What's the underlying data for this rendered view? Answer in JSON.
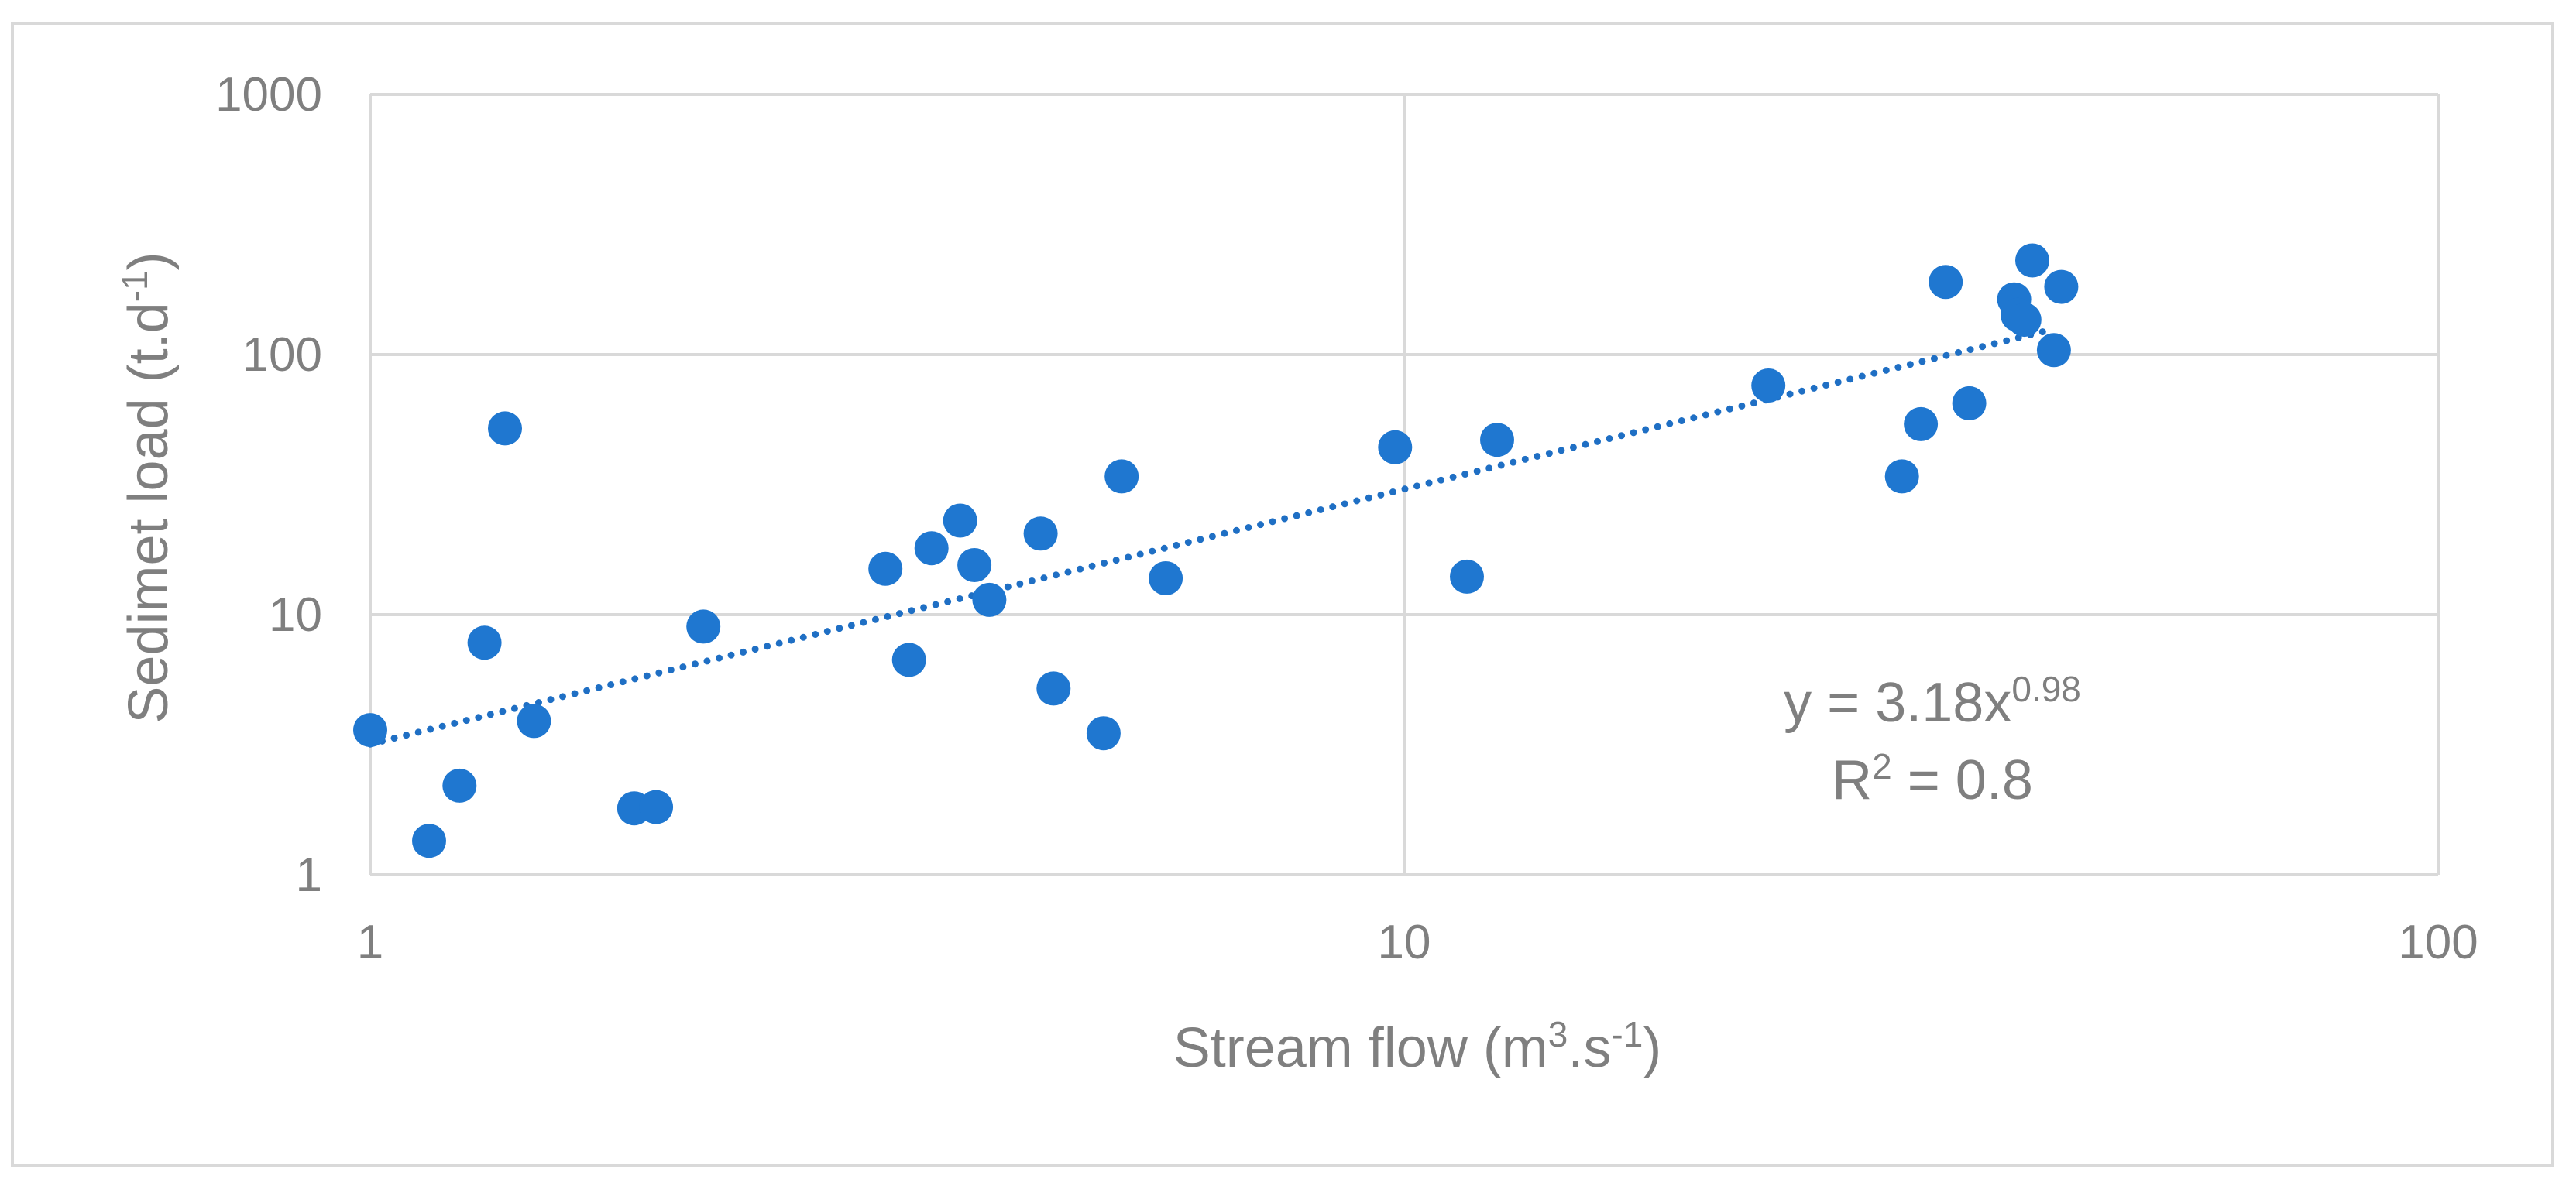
{
  "chart_data": {
    "type": "scatter",
    "xlabel": {
      "pre": "Stream flow (m",
      "sup1": "3",
      "mid": ".s",
      "sup2": "-1",
      "post": ")"
    },
    "ylabel": {
      "pre": "Sedimet load (t.d",
      "sup1": "-1",
      "post": ")"
    },
    "x_scale": "log",
    "y_scale": "log",
    "xlim": [
      1,
      100
    ],
    "ylim": [
      1,
      1000
    ],
    "x_ticks": [
      1,
      10,
      100
    ],
    "x_tick_labels": [
      "1",
      "10",
      "100"
    ],
    "y_ticks": [
      1,
      10,
      100,
      1000
    ],
    "y_tick_labels": [
      "1",
      "10",
      "100",
      "1000"
    ],
    "grid": true,
    "legend": "none",
    "colors": {
      "marker": "#1f77d0",
      "trendline": "#1f6fc4",
      "grid": "#d9d9d9",
      "text": "#7f7f7f"
    },
    "series": [
      {
        "points": [
          {
            "x": 1.0,
            "y": 3.6
          },
          {
            "x": 1.14,
            "y": 1.35
          },
          {
            "x": 1.22,
            "y": 2.2
          },
          {
            "x": 1.29,
            "y": 7.8
          },
          {
            "x": 1.35,
            "y": 52
          },
          {
            "x": 1.44,
            "y": 3.9
          },
          {
            "x": 1.8,
            "y": 1.8
          },
          {
            "x": 1.89,
            "y": 1.82
          },
          {
            "x": 2.1,
            "y": 9.0
          },
          {
            "x": 3.15,
            "y": 15
          },
          {
            "x": 3.32,
            "y": 6.7
          },
          {
            "x": 3.49,
            "y": 18
          },
          {
            "x": 3.72,
            "y": 23
          },
          {
            "x": 3.84,
            "y": 15.5
          },
          {
            "x": 3.97,
            "y": 11.4
          },
          {
            "x": 4.45,
            "y": 20.5
          },
          {
            "x": 4.58,
            "y": 5.2
          },
          {
            "x": 5.12,
            "y": 3.5
          },
          {
            "x": 5.33,
            "y": 34
          },
          {
            "x": 5.88,
            "y": 13.8
          },
          {
            "x": 9.8,
            "y": 44
          },
          {
            "x": 11.5,
            "y": 14
          },
          {
            "x": 12.3,
            "y": 47
          },
          {
            "x": 22.5,
            "y": 76
          },
          {
            "x": 30.3,
            "y": 34
          },
          {
            "x": 31.6,
            "y": 54
          },
          {
            "x": 33.4,
            "y": 190
          },
          {
            "x": 35.2,
            "y": 65
          },
          {
            "x": 38.9,
            "y": 163
          },
          {
            "x": 39.2,
            "y": 142
          },
          {
            "x": 39.8,
            "y": 136
          },
          {
            "x": 40.5,
            "y": 230
          },
          {
            "x": 42.5,
            "y": 104
          },
          {
            "x": 43.2,
            "y": 182
          }
        ]
      }
    ],
    "trendline": {
      "type": "power",
      "a": 3.18,
      "b": 0.98,
      "x_range": [
        1,
        42
      ]
    },
    "annotation": {
      "eq_pre": "y = 3.18x",
      "eq_exp": "0.98",
      "r2_pre": "R",
      "r2_sup": "2",
      "r2_post": " = 0.8"
    }
  }
}
